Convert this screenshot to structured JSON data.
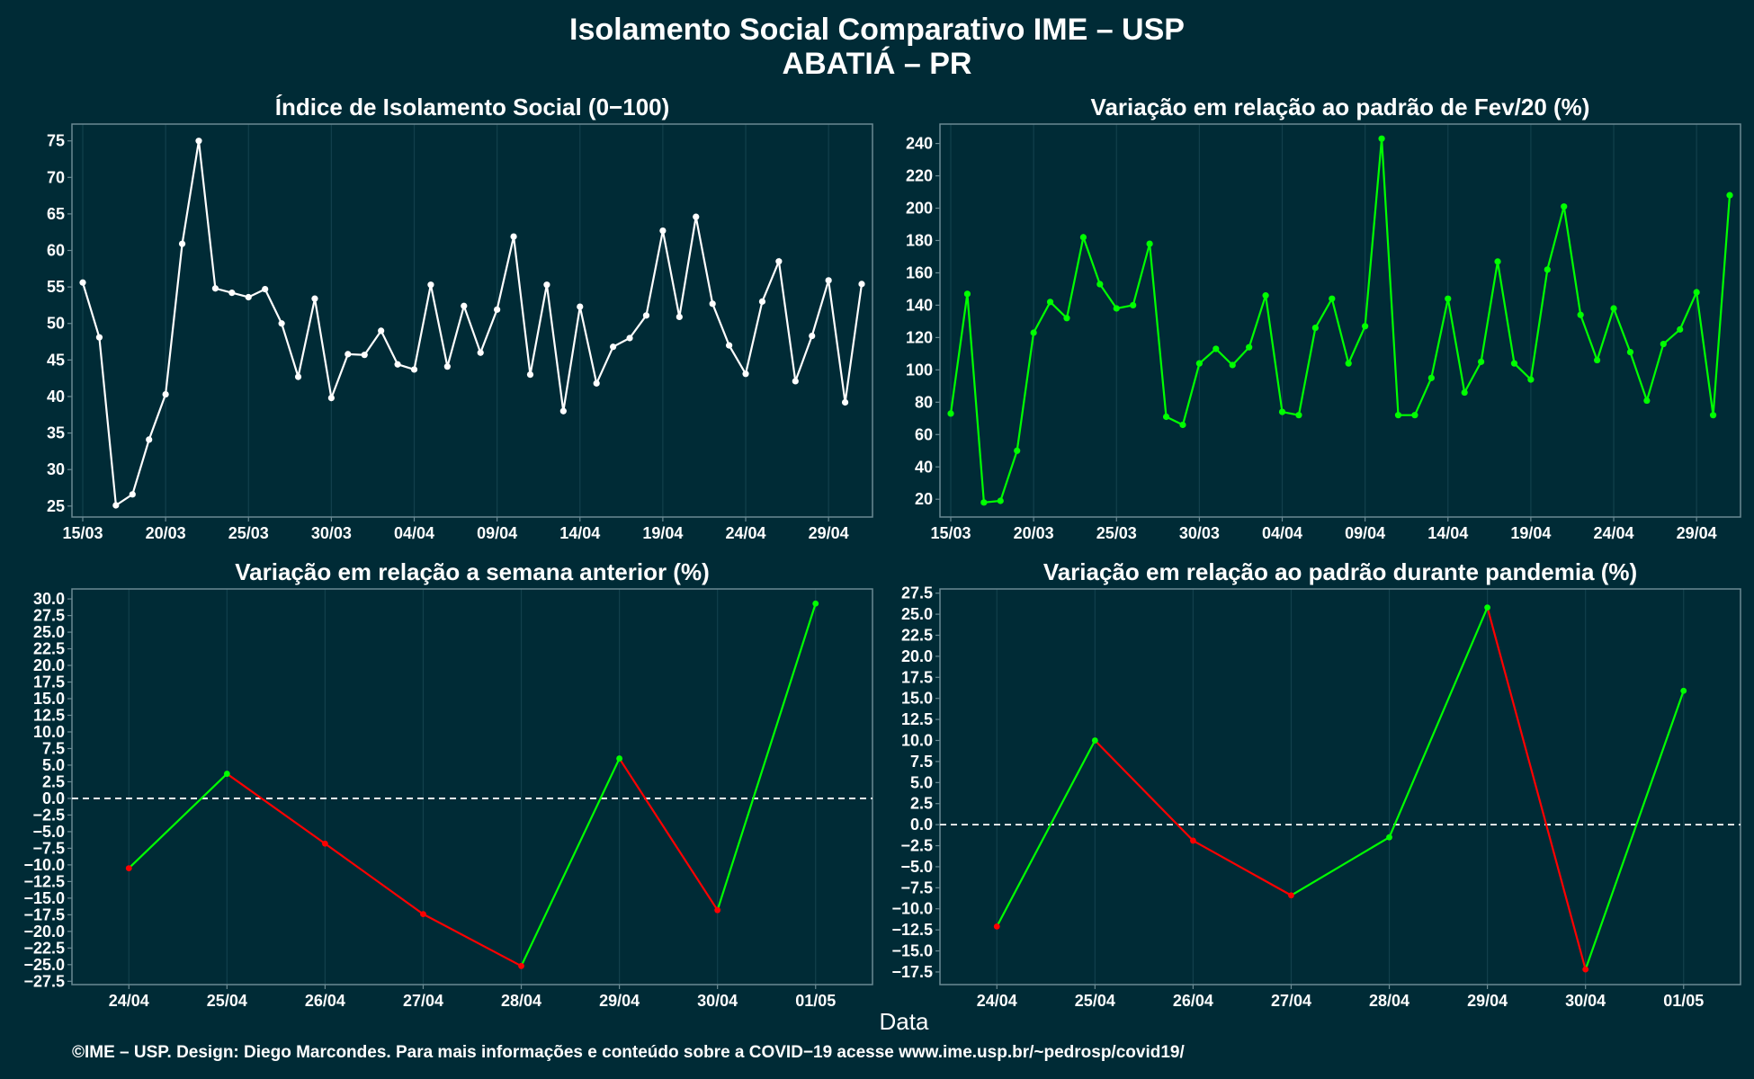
{
  "title_line1": "Isolamento Social Comparativo IME – USP",
  "title_line2": "ABATIÁ – PR",
  "xlabel": "Data",
  "footer": "©IME – USP. Design: Diego Marcondes. Para mais informações e conteúdo sobre a COVID−19 acesse www.ime.usp.br/~pedrosp/covid19/",
  "colors": {
    "background": "#002b36",
    "axis": "#6b8a93",
    "grid": "#12404c",
    "white_series": "#ffffff",
    "green_series": "#00ff00",
    "red": "#ff0000",
    "zero_line": "#ffffff"
  },
  "chart_data": [
    {
      "id": "indice",
      "type": "line",
      "title": "Índice de Isolamento Social (0−100)",
      "xlabel": "",
      "ylabel": "",
      "ylim": [
        23.5,
        77.3
      ],
      "yticks": [
        25,
        30,
        35,
        40,
        45,
        50,
        55,
        60,
        65,
        70,
        75
      ],
      "xticks": [
        "15/03",
        "20/03",
        "25/03",
        "30/03",
        "04/04",
        "09/04",
        "14/04",
        "19/04",
        "24/04",
        "29/04"
      ],
      "x_start": "15/03",
      "series": [
        {
          "color": "#ffffff",
          "values": [
            55.6,
            48.1,
            25.1,
            26.6,
            34.1,
            40.3,
            60.9,
            75.0,
            54.8,
            54.2,
            53.6,
            54.7,
            50.0,
            42.7,
            53.4,
            39.8,
            45.8,
            45.7,
            49.0,
            44.4,
            43.7,
            55.3,
            44.1,
            52.4,
            46.0,
            51.9,
            61.9,
            43.0,
            55.3,
            38.0,
            52.3,
            41.8,
            46.8,
            48.0,
            51.1,
            62.7,
            50.9,
            64.6,
            52.7,
            47.0,
            43.1,
            53.0,
            58.5,
            42.1,
            48.3,
            55.9,
            39.2,
            55.4
          ]
        }
      ]
    },
    {
      "id": "fev20",
      "type": "line",
      "title": "Variação em relação ao padrão de Fev/20 (%)",
      "xlabel": "",
      "ylabel": "",
      "ylim": [
        9,
        252
      ],
      "yticks": [
        20,
        40,
        60,
        80,
        100,
        120,
        140,
        160,
        180,
        200,
        220,
        240
      ],
      "xticks": [
        "15/03",
        "20/03",
        "25/03",
        "30/03",
        "04/04",
        "09/04",
        "14/04",
        "19/04",
        "24/04",
        "29/04"
      ],
      "x_start": "15/03",
      "series": [
        {
          "color": "#00ff00",
          "values": [
            73,
            147,
            18,
            19,
            50,
            123,
            142,
            132,
            182,
            153,
            138,
            140,
            178,
            71,
            66,
            104,
            113,
            103,
            114,
            146,
            74,
            72,
            126,
            144,
            104,
            127,
            243,
            72,
            72,
            95,
            144,
            86,
            105,
            167,
            104,
            94,
            162,
            201,
            134,
            106,
            138,
            111,
            81,
            116,
            125,
            148,
            72,
            208
          ]
        }
      ]
    },
    {
      "id": "semana",
      "type": "line",
      "title": "Variação em relação a semana anterior (%)",
      "xlabel": "",
      "ylabel": "",
      "ylim": [
        -28.0,
        31.5
      ],
      "yticks": [
        -27.5,
        -25.0,
        -22.5,
        -20.0,
        -17.5,
        -15.0,
        -12.5,
        -10.0,
        -7.5,
        -5.0,
        -2.5,
        0.0,
        2.5,
        5.0,
        7.5,
        10.0,
        12.5,
        15.0,
        17.5,
        20.0,
        22.5,
        25.0,
        27.5,
        30.0
      ],
      "categories": [
        "24/04",
        "25/04",
        "26/04",
        "27/04",
        "28/04",
        "29/04",
        "30/04",
        "01/05"
      ],
      "values": [
        -10.5,
        3.7,
        -6.8,
        -17.4,
        -25.2,
        6.0,
        -16.8,
        29.3
      ],
      "up_color": "#00ff00",
      "down_color": "#ff0000",
      "zero_line": true
    },
    {
      "id": "pandemia",
      "type": "line",
      "title": "Variação em relação ao padrão durante pandemia (%)",
      "xlabel": "",
      "ylabel": "",
      "ylim": [
        -19.0,
        28.0
      ],
      "yticks": [
        -17.5,
        -15.0,
        -12.5,
        -10.0,
        -7.5,
        -5.0,
        -2.5,
        0.0,
        2.5,
        5.0,
        7.5,
        10.0,
        12.5,
        15.0,
        17.5,
        20.0,
        22.5,
        25.0,
        27.5
      ],
      "categories": [
        "24/04",
        "25/04",
        "26/04",
        "27/04",
        "28/04",
        "29/04",
        "30/04",
        "01/05"
      ],
      "values": [
        -12.1,
        10.0,
        -1.9,
        -8.4,
        -1.5,
        25.8,
        -17.2,
        15.9
      ],
      "up_color": "#00ff00",
      "down_color": "#ff0000",
      "zero_line": true
    }
  ]
}
